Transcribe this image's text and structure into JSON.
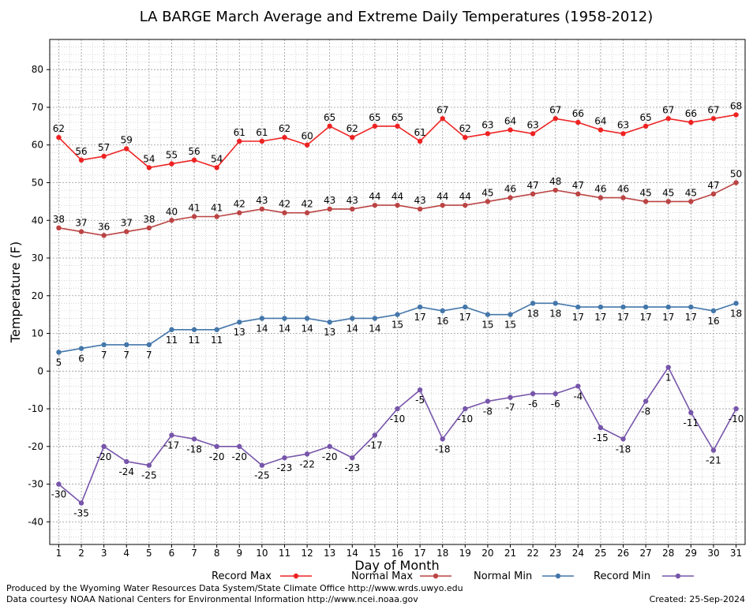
{
  "chart_data": {
    "type": "line",
    "title": "LA BARGE March Average and Extreme Daily Temperatures (1958-2012)",
    "xlabel": "Day of Month",
    "ylabel": "Temperature (F)",
    "xlim": [
      0.6,
      31.4
    ],
    "ylim": [
      -46,
      88
    ],
    "yticks": [
      -40,
      -30,
      -20,
      -10,
      0,
      10,
      20,
      30,
      40,
      50,
      60,
      70,
      80
    ],
    "x": [
      1,
      2,
      3,
      4,
      5,
      6,
      7,
      8,
      9,
      10,
      11,
      12,
      13,
      14,
      15,
      16,
      17,
      18,
      19,
      20,
      21,
      22,
      23,
      24,
      25,
      26,
      27,
      28,
      29,
      30,
      31
    ],
    "grid": true,
    "legend_position": "bottom",
    "series": [
      {
        "name": "Record Max",
        "color": "#ee2222",
        "label_pos": "above",
        "values": [
          62,
          56,
          57,
          59,
          54,
          55,
          56,
          54,
          61,
          61,
          62,
          60,
          65,
          62,
          65,
          65,
          61,
          67,
          62,
          63,
          64,
          63,
          67,
          66,
          64,
          63,
          65,
          67,
          66,
          67,
          68
        ]
      },
      {
        "name": "Normal Max",
        "color": "#bb4444",
        "label_pos": "above",
        "values": [
          38,
          37,
          36,
          37,
          38,
          40,
          41,
          41,
          42,
          43,
          42,
          42,
          43,
          43,
          44,
          44,
          43,
          44,
          44,
          45,
          46,
          47,
          48,
          47,
          46,
          46,
          45,
          45,
          45,
          47,
          50
        ]
      },
      {
        "name": "Normal Min",
        "color": "#4477aa",
        "label_pos": "below",
        "values": [
          5,
          6,
          7,
          7,
          7,
          11,
          11,
          11,
          13,
          14,
          14,
          14,
          13,
          14,
          14,
          15,
          17,
          16,
          17,
          15,
          15,
          18,
          18,
          17,
          17,
          17,
          17,
          17,
          17,
          16,
          18
        ]
      },
      {
        "name": "Record Min",
        "color": "#7755aa",
        "label_pos": "below",
        "values": [
          -30,
          -35,
          -20,
          -24,
          -25,
          -17,
          -18,
          -20,
          -20,
          -25,
          -23,
          -22,
          -20,
          -23,
          -17,
          -10,
          -5,
          -18,
          -10,
          -8,
          -7,
          -6,
          -6,
          -4,
          -15,
          -18,
          -8,
          1,
          -11,
          -21,
          -10
        ]
      }
    ]
  },
  "footer": {
    "line1": "Produced by the Wyoming Water Resources Data System/State Climate Office http://www.wrds.uwyo.edu",
    "line2": "Data courtesy NOAA National Centers for Environmental Information http://www.ncei.noaa.gov",
    "created": "Created:  25-Sep-2024"
  }
}
